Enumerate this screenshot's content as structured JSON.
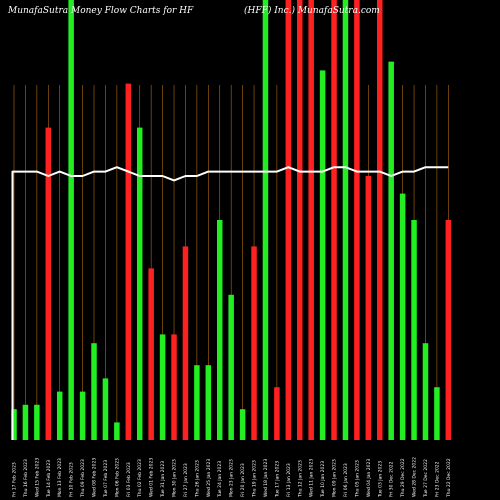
{
  "header": {
    "left": "MunafaSutra  Money Flow  Charts for HF",
    "right": "(HFF) Inc.) MunafaSutra.com"
  },
  "chart_data": {
    "type": "bar",
    "title": "MunafaSutra  Money Flow  Charts for HF",
    "ylim": [
      0,
      100
    ],
    "grid": "vertical",
    "series": [
      {
        "values": [
          7,
          8,
          8,
          71,
          11,
          100,
          11,
          22,
          14,
          4,
          81,
          71,
          39,
          24,
          24,
          44,
          17,
          17,
          50,
          33,
          7,
          44,
          100,
          12,
          100,
          100,
          100,
          84,
          100,
          100,
          100,
          60,
          100,
          86,
          56,
          50,
          22,
          12,
          50
        ],
        "colors": [
          "green",
          "green",
          "green",
          "red",
          "green",
          "green",
          "green",
          "green",
          "green",
          "green",
          "red",
          "green",
          "red",
          "green",
          "red",
          "red",
          "green",
          "green",
          "green",
          "green",
          "green",
          "red",
          "green",
          "red",
          "red",
          "red",
          "red",
          "green",
          "red",
          "green",
          "red",
          "red",
          "red",
          "green",
          "green",
          "green",
          "green",
          "green",
          "red"
        ]
      },
      {
        "name": "",
        "type": "line",
        "values": [
          61,
          61,
          61,
          60,
          61,
          60,
          60,
          61,
          61,
          62,
          61,
          60,
          60,
          60,
          59,
          60,
          60,
          61,
          61,
          61,
          61,
          61,
          61,
          61,
          62,
          61,
          61,
          61,
          62,
          62,
          61,
          61,
          61,
          60,
          61,
          61,
          62,
          62,
          62
        ]
      }
    ],
    "categories": [
      "Fri 17 Feb 2023",
      "Thu 16 Feb 2023",
      "Wed 15 Feb 2023",
      "Tue 14 Feb 2023",
      "Mon 13 Feb 2023",
      "Fri 10 Feb 2023",
      "Thu 09 Feb 2023",
      "Wed 08 Feb 2023",
      "Tue 07 Feb 2023",
      "Mon 06 Feb 2023",
      "Fri 03 Feb 2023",
      "Thu 02 Feb 2023",
      "Wed 01 Feb 2023",
      "Tue 31 Jan 2023",
      "Mon 30 Jan 2023",
      "Fri 27 Jan 2023",
      "Thu 26 Jan 2023",
      "Wed 25 Jan 2023",
      "Tue 24 Jan 2023",
      "Mon 23 Jan 2023",
      "Fri 20 Jan 2023",
      "Thu 19 Jan 2023",
      "Wed 18 Jan 2023",
      "Tue 17 Jan 2023",
      "Fri 13 Jan 2023",
      "Thu 12 Jan 2023",
      "Wed 11 Jan 2023",
      "Tue 10 Jan 2023",
      "Mon 09 Jan 2023",
      "Fri 06 Jan 2023",
      "Thu 05 Jan 2023",
      "Wed 04 Jan 2023",
      "Tue 03 Jan 2023",
      "Fri 30 Dec 2022",
      "Thu 29 Dec 2022",
      "Wed 28 Dec 2022",
      "Tue 27 Dec 2022",
      "Fri 23 Dec 2022",
      "Thu 22 Dec 2022"
    ],
    "bar_colors": {
      "green": "#22ee22",
      "red": "#ff2020"
    },
    "line_color": "#ffffff",
    "grid_color": "#b06a10",
    "background": "#000000"
  }
}
